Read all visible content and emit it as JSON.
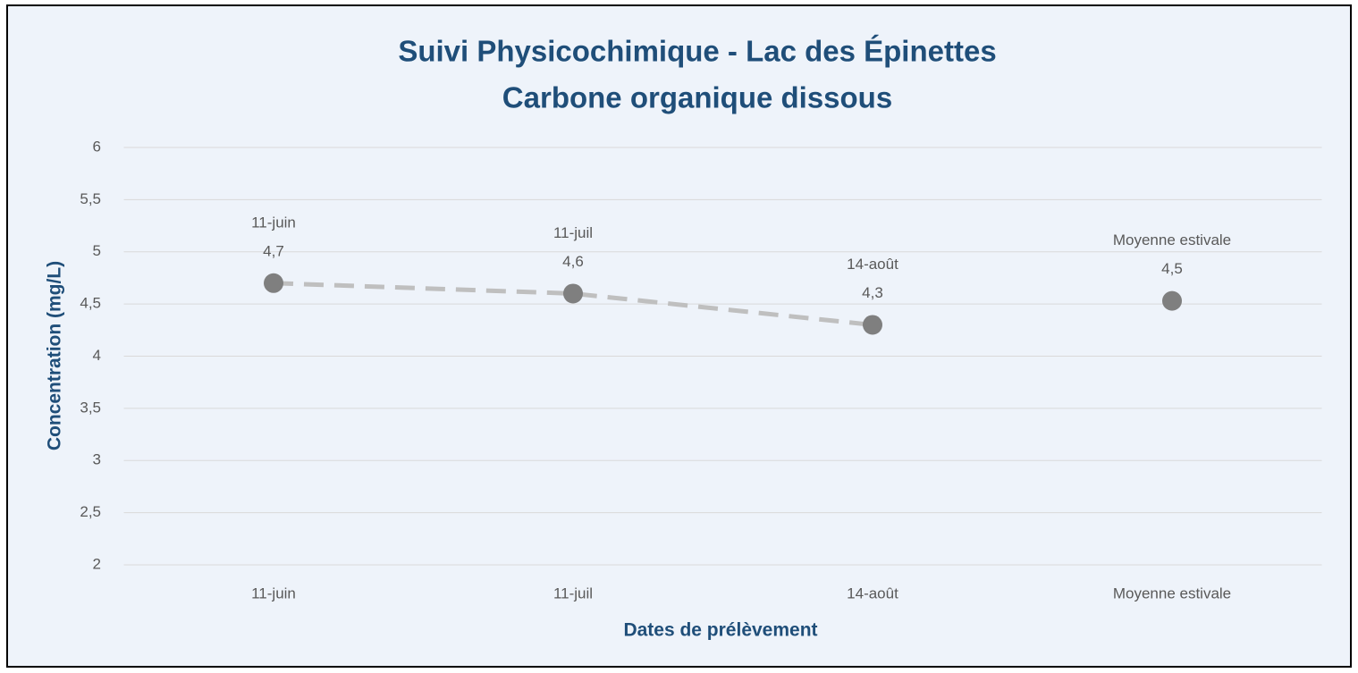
{
  "chart_data": {
    "type": "line",
    "title": [
      "Suivi Physicochimique - Lac des Épinettes",
      "Carbone organique dissous"
    ],
    "xlabel": "Dates de prélèvement",
    "ylabel": "Concentration (mg/L)",
    "categories": [
      "11-juin",
      "11-juil",
      "14-août",
      "Moyenne estivale"
    ],
    "series": [
      {
        "color": "#7f7f7f",
        "line_color": "#bfbfbf",
        "line_style": "dashed",
        "values": [
          4.7,
          4.6,
          4.3,
          null
        ],
        "value_labels": [
          "4,7",
          "4,6",
          "4,3",
          null
        ]
      },
      {
        "color": "#7f7f7f",
        "line_style": "none",
        "values": [
          null,
          null,
          null,
          4.53
        ],
        "value_labels": [
          null,
          null,
          null,
          "4,5"
        ]
      }
    ],
    "ylim": [
      2,
      6
    ],
    "yticks": [
      2,
      {
        "value": 2.5,
        "label": "2,5"
      },
      3,
      {
        "value": 3.5,
        "label": "3,5"
      },
      4,
      {
        "value": 4.5,
        "label": "4,5"
      },
      5,
      {
        "value": 5.5,
        "label": "5,5"
      },
      6
    ],
    "grid": true
  }
}
